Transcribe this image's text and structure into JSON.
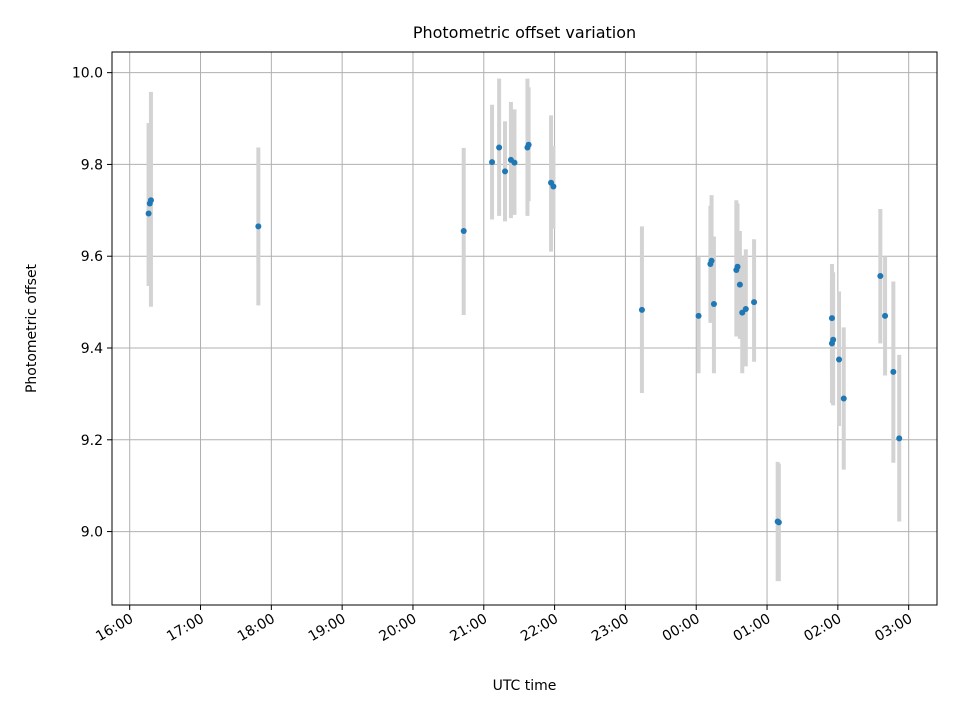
{
  "chart_data": {
    "type": "scatter",
    "title": "Photometric offset variation",
    "xlabel": "UTC time",
    "ylabel": "Photometric offset",
    "x_axis_type": "time",
    "x_start_date": "2000-01-01",
    "xlim": [
      "2000-01-01 15:45",
      "2000-01-02 03:24"
    ],
    "ylim": [
      8.84,
      10.045
    ],
    "xticks": [
      {
        "t": "2000-01-01 16:00",
        "label": "16:00"
      },
      {
        "t": "2000-01-01 17:00",
        "label": "17:00"
      },
      {
        "t": "2000-01-01 18:00",
        "label": "18:00"
      },
      {
        "t": "2000-01-01 19:00",
        "label": "19:00"
      },
      {
        "t": "2000-01-01 20:00",
        "label": "20:00"
      },
      {
        "t": "2000-01-01 21:00",
        "label": "21:00"
      },
      {
        "t": "2000-01-01 22:00",
        "label": "22:00"
      },
      {
        "t": "2000-01-01 23:00",
        "label": "23:00"
      },
      {
        "t": "2000-01-02 00:00",
        "label": "00:00"
      },
      {
        "t": "2000-01-02 01:00",
        "label": "01:00"
      },
      {
        "t": "2000-01-02 02:00",
        "label": "02:00"
      },
      {
        "t": "2000-01-02 03:00",
        "label": "03:00"
      }
    ],
    "yticks": [
      9.0,
      9.2,
      9.4,
      9.6,
      9.8,
      10.0
    ],
    "grid": true,
    "marker_color": "#1f77b4",
    "errorbar_color": "#d3d3d3",
    "points": [
      {
        "t": "2000-01-01 16:16",
        "y": 9.693,
        "lo": 9.535,
        "hi": 9.89
      },
      {
        "t": "2000-01-01 16:17",
        "y": 9.715,
        "lo": 9.555,
        "hi": 9.89
      },
      {
        "t": "2000-01-01 16:18",
        "y": 9.722,
        "lo": 9.49,
        "hi": 9.958
      },
      {
        "t": "2000-01-01 17:49",
        "y": 9.665,
        "lo": 9.493,
        "hi": 9.837
      },
      {
        "t": "2000-01-01 20:43",
        "y": 9.655,
        "lo": 9.472,
        "hi": 9.836
      },
      {
        "t": "2000-01-01 21:07",
        "y": 9.805,
        "lo": 9.68,
        "hi": 9.93
      },
      {
        "t": "2000-01-01 21:13",
        "y": 9.837,
        "lo": 9.688,
        "hi": 9.987
      },
      {
        "t": "2000-01-01 21:18",
        "y": 9.785,
        "lo": 9.676,
        "hi": 9.894
      },
      {
        "t": "2000-01-01 21:23",
        "y": 9.81,
        "lo": 9.683,
        "hi": 9.936
      },
      {
        "t": "2000-01-01 21:26",
        "y": 9.804,
        "lo": 9.69,
        "hi": 9.92
      },
      {
        "t": "2000-01-01 21:37",
        "y": 9.837,
        "lo": 9.688,
        "hi": 9.987
      },
      {
        "t": "2000-01-01 21:38",
        "y": 9.843,
        "lo": 9.72,
        "hi": 9.968
      },
      {
        "t": "2000-01-01 21:57",
        "y": 9.76,
        "lo": 9.61,
        "hi": 9.907
      },
      {
        "t": "2000-01-01 21:59",
        "y": 9.752,
        "lo": 9.66,
        "hi": 9.84
      },
      {
        "t": "2000-01-01 23:14",
        "y": 9.483,
        "lo": 9.302,
        "hi": 9.665
      },
      {
        "t": "2000-01-02 00:02",
        "y": 9.47,
        "lo": 9.345,
        "hi": 9.6
      },
      {
        "t": "2000-01-02 00:12",
        "y": 9.583,
        "lo": 9.455,
        "hi": 9.71
      },
      {
        "t": "2000-01-02 00:13",
        "y": 9.59,
        "lo": 9.455,
        "hi": 9.733
      },
      {
        "t": "2000-01-02 00:15",
        "y": 9.496,
        "lo": 9.345,
        "hi": 9.643
      },
      {
        "t": "2000-01-02 00:34",
        "y": 9.57,
        "lo": 9.425,
        "hi": 9.722
      },
      {
        "t": "2000-01-02 00:35",
        "y": 9.577,
        "lo": 9.435,
        "hi": 9.715
      },
      {
        "t": "2000-01-02 00:37",
        "y": 9.538,
        "lo": 9.42,
        "hi": 9.655
      },
      {
        "t": "2000-01-02 00:39",
        "y": 9.477,
        "lo": 9.345,
        "hi": 9.6
      },
      {
        "t": "2000-01-02 00:42",
        "y": 9.485,
        "lo": 9.36,
        "hi": 9.615
      },
      {
        "t": "2000-01-02 00:49",
        "y": 9.5,
        "lo": 9.37,
        "hi": 9.637
      },
      {
        "t": "2000-01-02 01:09",
        "y": 9.022,
        "lo": 8.892,
        "hi": 9.152
      },
      {
        "t": "2000-01-02 01:10",
        "y": 9.02,
        "lo": 8.892,
        "hi": 9.148
      },
      {
        "t": "2000-01-02 01:55",
        "y": 9.41,
        "lo": 9.28,
        "hi": 9.54
      },
      {
        "t": "2000-01-02 01:55",
        "y": 9.465,
        "lo": 9.35,
        "hi": 9.583
      },
      {
        "t": "2000-01-02 01:56",
        "y": 9.418,
        "lo": 9.275,
        "hi": 9.565
      },
      {
        "t": "2000-01-02 02:01",
        "y": 9.375,
        "lo": 9.23,
        "hi": 9.523
      },
      {
        "t": "2000-01-02 02:05",
        "y": 9.29,
        "lo": 9.135,
        "hi": 9.445
      },
      {
        "t": "2000-01-02 02:36",
        "y": 9.557,
        "lo": 9.41,
        "hi": 9.703
      },
      {
        "t": "2000-01-02 02:40",
        "y": 9.47,
        "lo": 9.34,
        "hi": 9.6
      },
      {
        "t": "2000-01-02 02:47",
        "y": 9.348,
        "lo": 9.15,
        "hi": 9.545
      },
      {
        "t": "2000-01-02 02:52",
        "y": 9.203,
        "lo": 9.022,
        "hi": 9.385
      }
    ]
  }
}
